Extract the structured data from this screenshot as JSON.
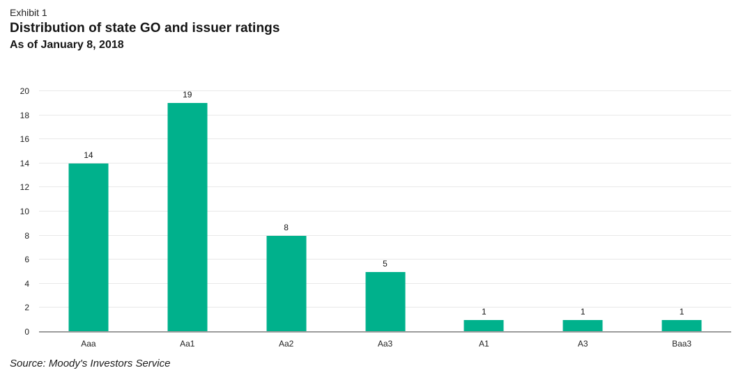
{
  "header": {
    "exhibit_label": "Exhibit 1",
    "title": "Distribution of state GO and issuer ratings",
    "subtitle": "As of January 8, 2018"
  },
  "chart_data": {
    "type": "bar",
    "categories": [
      "Aaa",
      "Aa1",
      "Aa2",
      "Aa3",
      "A1",
      "A3",
      "Baa3"
    ],
    "values": [
      14,
      19,
      8,
      5,
      1,
      1,
      1
    ],
    "title": "Distribution of state GO and issuer ratings",
    "subtitle": "As of January 8, 2018",
    "xlabel": "",
    "ylabel": "",
    "ylim": [
      0,
      20
    ],
    "ytick_step": 2,
    "grid": true,
    "legend": "none",
    "bar_color": "#00B18C",
    "gridline_color": "#e8e8e8",
    "baseline_color": "#9b9b9b"
  },
  "footer": {
    "source": "Source: Moody's Investors Service"
  }
}
